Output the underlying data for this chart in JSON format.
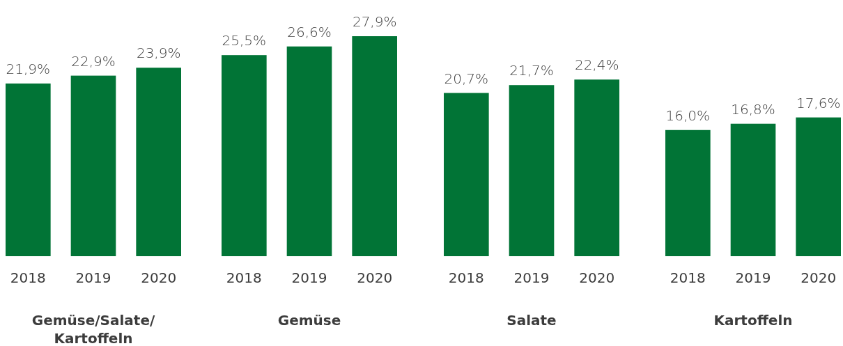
{
  "chart_data": [
    {
      "type": "bar",
      "xlabel": "Gemüse/Salate/\nKartoffeln",
      "categories": [
        "2018",
        "2019",
        "2020"
      ],
      "values": [
        21.9,
        22.9,
        23.9
      ],
      "color": "#017436",
      "value_labels": [
        "21,9%",
        "22,9%",
        "23,9%"
      ]
    },
    {
      "type": "bar",
      "xlabel": "Gemüse",
      "categories": [
        "2018",
        "2019",
        "2020"
      ],
      "values": [
        25.5,
        26.6,
        27.9
      ],
      "color": "#017436",
      "value_labels": [
        "25,5%",
        "26,6%",
        "27,9%"
      ]
    },
    {
      "type": "bar",
      "xlabel": "Salate",
      "categories": [
        "2018",
        "2019",
        "2020"
      ],
      "values": [
        20.7,
        21.7,
        22.4
      ],
      "color": "#017436",
      "value_labels": [
        "20,7%",
        "21,7%",
        "22,4%"
      ]
    },
    {
      "type": "bar",
      "xlabel": "Kartoffeln",
      "categories": [
        "2018",
        "2019",
        "2020"
      ],
      "values": [
        16.0,
        16.8,
        17.6
      ],
      "color": "#017436",
      "value_labels": [
        "16,0%",
        "16,8%",
        "17,6%"
      ]
    }
  ]
}
